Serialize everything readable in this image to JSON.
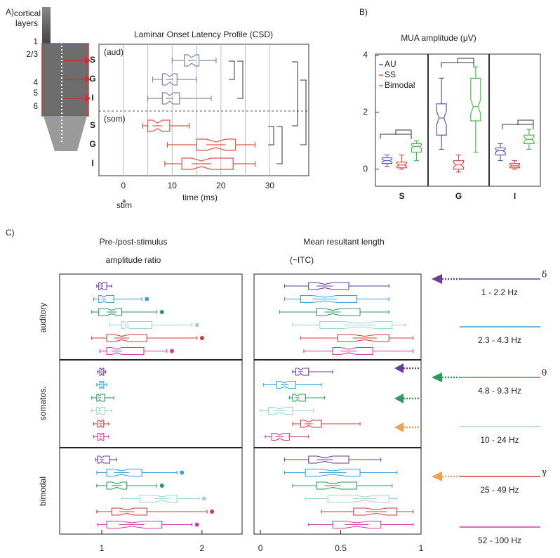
{
  "chart_data": [
    {
      "type": "boxplot",
      "panel": "A)",
      "title": "Laminar Onset Latency Profile (CSD)",
      "xlabel": "time (ms)",
      "annotation": "stim",
      "layer_image": {
        "caption": [
          "cortical",
          "layers"
        ],
        "labels": [
          "1",
          "2/3",
          "4",
          "5",
          "6"
        ]
      },
      "xlim": [
        -5,
        38
      ],
      "xticks": [
        0,
        10,
        20,
        30
      ],
      "minor_xticks": [
        5,
        15,
        25
      ],
      "grid": true,
      "groups": [
        {
          "label": "(aud)",
          "color": "#7f88ad",
          "categories": [
            "S",
            "G",
            "I"
          ],
          "boxes": [
            [
              10,
              12.5,
              14,
              15.5,
              19
            ],
            [
              6,
              8,
              9.5,
              11,
              15
            ],
            [
              5,
              8,
              9.5,
              11.5,
              18
            ]
          ]
        },
        {
          "label": "(som)",
          "color": "#e0554a",
          "categories": [
            "S",
            "G",
            "I"
          ],
          "boxes": [
            [
              4,
              5,
              7,
              9.5,
              13.5
            ],
            [
              9,
              15,
              19,
              23,
              27
            ],
            [
              8.5,
              12,
              16,
              22.5,
              27
            ]
          ]
        }
      ]
    },
    {
      "type": "boxplot",
      "panel": "B)",
      "title": "MUA amplitude (μV)",
      "facets": [
        "S",
        "G",
        "I"
      ],
      "ylim": [
        -0.6,
        4.05
      ],
      "yticks": [
        0,
        2,
        4
      ],
      "series": [
        {
          "name": "AU",
          "color": "#5a5fb0",
          "boxes": [
            [
              0.1,
              0.2,
              0.3,
              0.4,
              0.5
            ],
            [
              0.7,
              1.2,
              1.8,
              2.3,
              3.2
            ],
            [
              0.3,
              0.5,
              0.65,
              0.75,
              0.9
            ]
          ]
        },
        {
          "name": "SS",
          "color": "#e05050",
          "boxes": [
            [
              0,
              0.05,
              0.15,
              0.25,
              0.5
            ],
            [
              -0.1,
              0,
              0.15,
              0.3,
              0.5
            ],
            [
              0,
              0.05,
              0.12,
              0.2,
              0.3
            ]
          ]
        },
        {
          "name": "Bimodal",
          "color": "#4cbc4c",
          "boxes": [
            [
              0.3,
              0.6,
              0.8,
              0.9,
              1.0
            ],
            [
              0.6,
              1.7,
              2.2,
              3.2,
              3.6
            ],
            [
              0.7,
              0.9,
              1.05,
              1.2,
              1.4
            ]
          ]
        }
      ]
    },
    {
      "type": "boxplot",
      "panel": "C)",
      "title": [
        "Pre-/post-stimulus",
        "amplitude ratio"
      ],
      "xlim": [
        0.58,
        2.4
      ],
      "xticks": [
        1,
        2
      ],
      "groups": [
        {
          "label": "auditory",
          "boxes": [
            [
              0.95,
              0.97,
              1.0,
              1.05,
              1.1
            ],
            [
              0.92,
              0.97,
              1.02,
              1.12,
              1.4
            ],
            [
              0.9,
              0.97,
              1.1,
              1.2,
              1.55
            ],
            [
              1.08,
              1.2,
              1.25,
              1.5,
              1.9
            ],
            [
              0.9,
              1.05,
              1.2,
              1.45,
              1.95
            ],
            [
              0.98,
              1.05,
              1.15,
              1.42,
              1.65
            ]
          ],
          "outliers": [
            null,
            1.45,
            1.6,
            1.95,
            2.0,
            1.7
          ]
        },
        {
          "label": "somatos.",
          "boxes": [
            [
              0.96,
              0.98,
              1.0,
              1.02,
              1.04
            ],
            [
              0.95,
              0.98,
              1.0,
              1.02,
              1.05
            ],
            [
              0.9,
              0.95,
              0.98,
              1.03,
              1.12
            ],
            [
              0.9,
              0.95,
              0.98,
              1.03,
              1.1
            ],
            [
              0.92,
              0.96,
              0.99,
              1.02,
              1.07
            ],
            [
              0.92,
              0.96,
              0.99,
              1.02,
              1.07
            ]
          ],
          "outliers": [
            null,
            null,
            null,
            null,
            null,
            null
          ]
        },
        {
          "label": "bimodal",
          "boxes": [
            [
              0.94,
              0.96,
              1.0,
              1.08,
              1.15
            ],
            [
              0.95,
              1.05,
              1.2,
              1.4,
              1.75
            ],
            [
              0.95,
              1.05,
              1.15,
              1.25,
              1.55
            ],
            [
              1.2,
              1.38,
              1.6,
              1.75,
              1.97
            ],
            [
              0.95,
              1.1,
              1.25,
              1.45,
              2.05
            ],
            [
              0.96,
              1.05,
              1.3,
              1.6,
              1.9
            ]
          ],
          "outliers": [
            null,
            1.8,
            1.6,
            2.02,
            2.1,
            1.95
          ]
        }
      ]
    },
    {
      "type": "boxplot",
      "title": [
        "Mean resultant length",
        "(~ITC)"
      ],
      "xlim": [
        -0.04,
        1.0
      ],
      "xticks": [
        0,
        0.5,
        1
      ],
      "groups": [
        {
          "boxes": [
            [
              0.15,
              0.3,
              0.4,
              0.55,
              0.8
            ],
            [
              0.15,
              0.25,
              0.4,
              0.6,
              0.8
            ],
            [
              0.12,
              0.35,
              0.45,
              0.62,
              0.8
            ],
            [
              0.2,
              0.37,
              0.62,
              0.82,
              0.9
            ],
            [
              0.25,
              0.48,
              0.65,
              0.8,
              0.95
            ],
            [
              0.27,
              0.45,
              0.55,
              0.7,
              0.95
            ]
          ]
        },
        {
          "boxes": [
            [
              0.2,
              0.22,
              0.25,
              0.3,
              0.45
            ],
            [
              0.02,
              0.1,
              0.15,
              0.22,
              0.38
            ],
            [
              0.18,
              0.2,
              0.23,
              0.28,
              0.4
            ],
            [
              0.0,
              0.05,
              0.12,
              0.2,
              0.33
            ],
            [
              0.2,
              0.25,
              0.3,
              0.38,
              0.62
            ],
            [
              0.03,
              0.07,
              0.12,
              0.18,
              0.3
            ]
          ]
        },
        {
          "boxes": [
            [
              0.15,
              0.3,
              0.4,
              0.55,
              0.75
            ],
            [
              0.15,
              0.28,
              0.45,
              0.62,
              0.85
            ],
            [
              0.2,
              0.35,
              0.45,
              0.6,
              0.82
            ],
            [
              0.28,
              0.42,
              0.65,
              0.8,
              0.85
            ],
            [
              0.38,
              0.58,
              0.72,
              0.85,
              0.95
            ],
            [
              0.3,
              0.45,
              0.6,
              0.75,
              0.95
            ]
          ]
        }
      ]
    }
  ],
  "legend": {
    "bands": [
      {
        "name": "1 - 2.2 Hz",
        "color": "#6a3d9a",
        "symbol": "δ"
      },
      {
        "name": "2.3 - 4.3 Hz",
        "color": "#3aa0d8"
      },
      {
        "name": "4.8 - 9.3 Hz",
        "color": "#2e9a5a",
        "symbol": "θ"
      },
      {
        "name": "10 - 24 Hz",
        "color": "#9ed8c4"
      },
      {
        "name": "25 - 49 Hz",
        "color": "#d63a3a",
        "symbol": "γ"
      },
      {
        "name": "52 - 100 Hz",
        "color": "#d63aa0"
      }
    ]
  }
}
